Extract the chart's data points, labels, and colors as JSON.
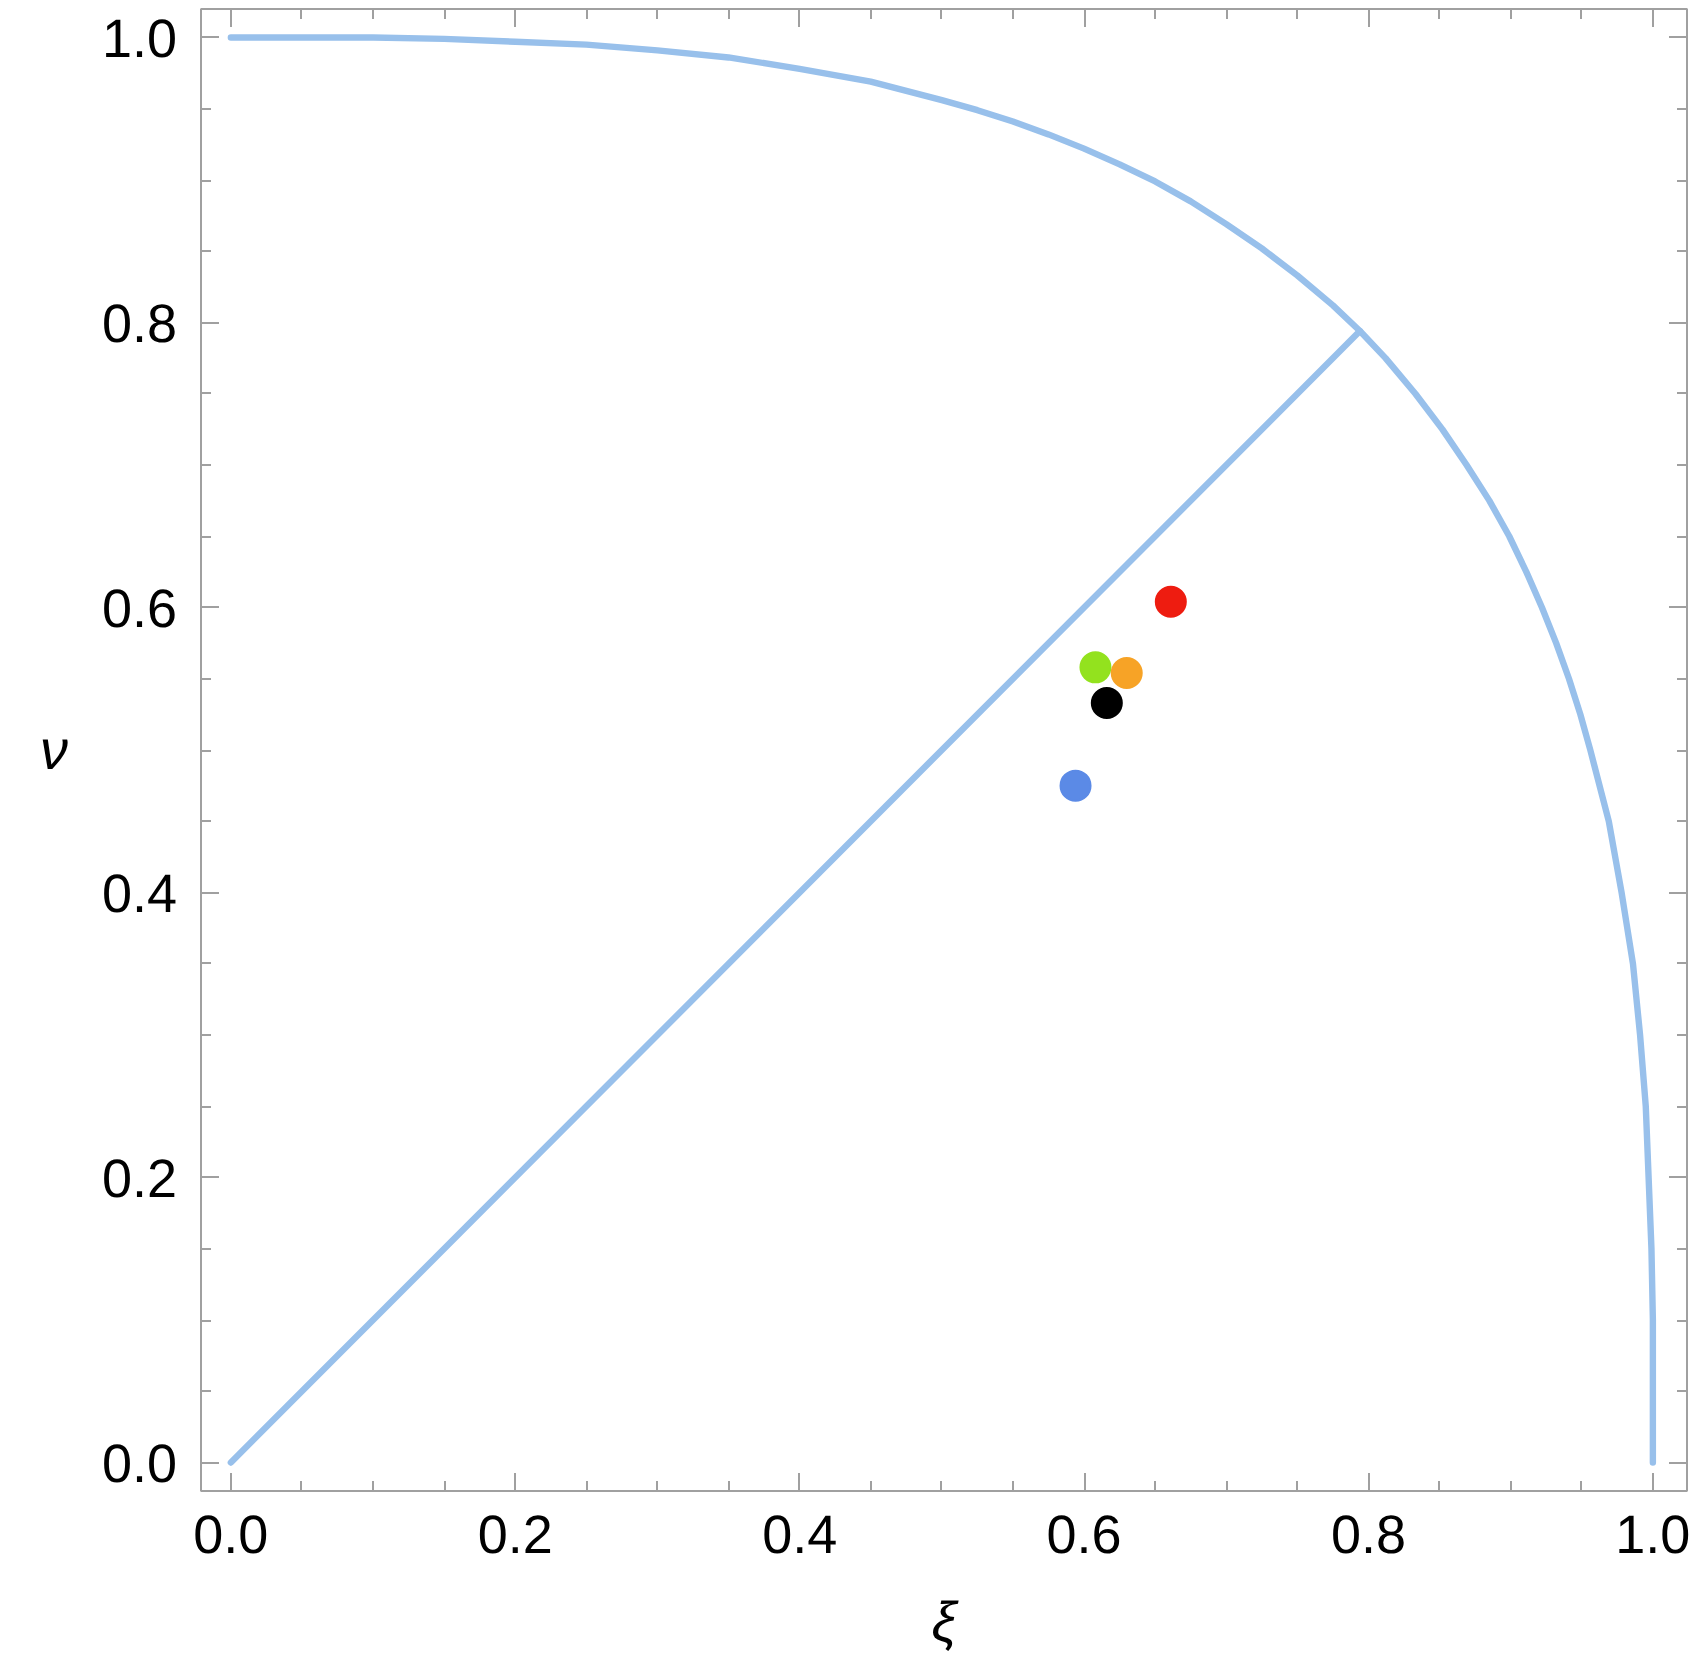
{
  "chart_data": {
    "type": "line",
    "xlabel": "ξ",
    "ylabel": "ν",
    "xlim": [
      -0.021,
      1.024
    ],
    "ylim": [
      -0.02,
      1.02
    ],
    "xticks": [
      {
        "value": 0,
        "label": "0.0"
      },
      {
        "value": 0.05,
        "label": null
      },
      {
        "value": 0.1,
        "label": null
      },
      {
        "value": 0.15,
        "label": null
      },
      0.2,
      {
        "value": 0.25,
        "label": null
      },
      {
        "value": 0.3,
        "label": null
      },
      {
        "value": 0.35,
        "label": null
      },
      0.4,
      {
        "value": 0.45,
        "label": null
      },
      {
        "value": 0.5,
        "label": null
      },
      {
        "value": 0.55,
        "label": null
      },
      0.6,
      {
        "value": 0.65,
        "label": null
      },
      {
        "value": 0.7,
        "label": null
      },
      {
        "value": 0.75,
        "label": null
      },
      0.8,
      {
        "value": 0.85,
        "label": null
      },
      {
        "value": 0.9,
        "label": null
      },
      {
        "value": 0.95,
        "label": null
      },
      {
        "value": 1,
        "label": "1.0"
      }
    ],
    "yticks": [
      {
        "value": 0,
        "label": "0.0"
      },
      {
        "value": 0.05,
        "label": null
      },
      {
        "value": 0.1,
        "label": null
      },
      {
        "value": 0.15,
        "label": null
      },
      0.2,
      {
        "value": 0.25,
        "label": null
      },
      {
        "value": 0.3,
        "label": null
      },
      {
        "value": 0.35,
        "label": null
      },
      0.4,
      {
        "value": 0.45,
        "label": null
      },
      {
        "value": 0.5,
        "label": null
      },
      {
        "value": 0.55,
        "label": null
      },
      0.6,
      {
        "value": 0.65,
        "label": null
      },
      {
        "value": 0.7,
        "label": null
      },
      {
        "value": 0.75,
        "label": null
      },
      0.8,
      {
        "value": 0.85,
        "label": null
      },
      {
        "value": 0.9,
        "label": null
      },
      {
        "value": 0.95,
        "label": null
      },
      {
        "value": 1,
        "label": "1.0"
      }
    ],
    "series": [
      {
        "color": "#98c0eb",
        "x": [
          0,
          0.05,
          0.1,
          0.15,
          0.2,
          0.25,
          0.3,
          0.35,
          0.4,
          0.45,
          0.5,
          0.525,
          0.55,
          0.575,
          0.6,
          0.625,
          0.65,
          0.675,
          0.7,
          0.725,
          0.75,
          0.775,
          0.794,
          0.812,
          0.833,
          0.852,
          0.869,
          0.885,
          0.899,
          0.911,
          0.922,
          0.932,
          0.941,
          0.949,
          0.956,
          0.969,
          0.978,
          0.986,
          0.991,
          0.995,
          0.997,
          0.999,
          1.0,
          1.0,
          1.0
        ],
        "values": [
          1.0,
          1.0,
          1.0,
          0.999,
          0.997,
          0.995,
          0.991,
          0.986,
          0.978,
          0.969,
          0.956,
          0.949,
          0.941,
          0.932,
          0.922,
          0.911,
          0.899,
          0.885,
          0.869,
          0.852,
          0.833,
          0.812,
          0.794,
          0.775,
          0.75,
          0.725,
          0.7,
          0.675,
          0.65,
          0.625,
          0.6,
          0.575,
          0.55,
          0.525,
          0.5,
          0.45,
          0.4,
          0.35,
          0.3,
          0.25,
          0.2,
          0.15,
          0.1,
          0.05,
          0
        ]
      },
      {
        "color": "#98c0eb",
        "x": [
          0,
          0.794
        ],
        "values": [
          0,
          0.794
        ]
      },
      {
        "type": "scatter",
        "marker": "circle",
        "colors": [
          "#ee1c10",
          "#93e21e",
          "#f7a326",
          "#000000",
          "#5b8ae6"
        ],
        "x": [
          0.661,
          0.608,
          0.63,
          0.616,
          0.594
        ],
        "values": [
          0.604,
          0.558,
          0.554,
          0.533,
          0.475
        ]
      }
    ]
  }
}
